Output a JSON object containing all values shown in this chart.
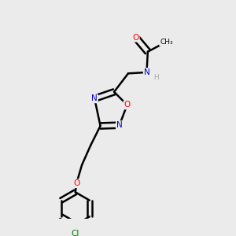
{
  "bg_color": "#ebebeb",
  "bond_color": "#000000",
  "atom_colors": {
    "O": "#ff0000",
    "N": "#0000cd",
    "Cl": "#008000",
    "C": "#000000",
    "H": "#aaaaaa"
  },
  "bond_width": 1.8,
  "dbo": 0.013
}
